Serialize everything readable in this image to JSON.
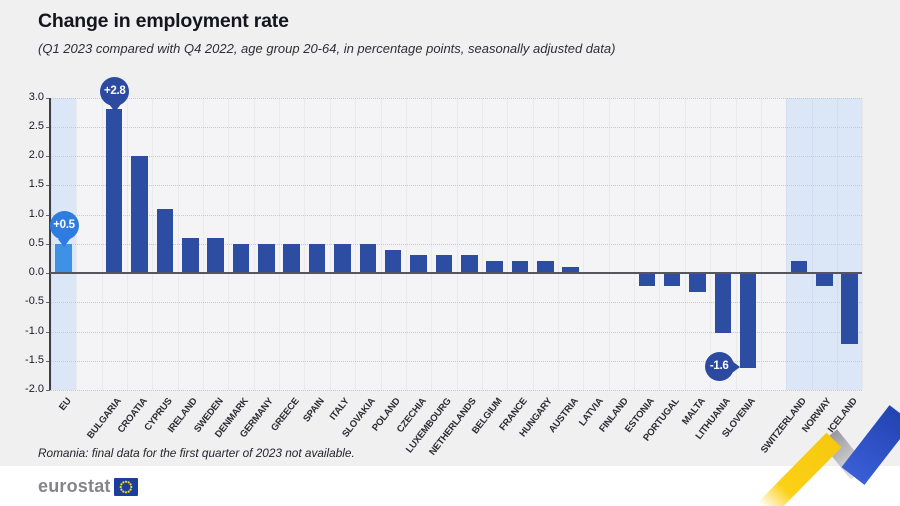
{
  "header": {
    "title": "Change in employment rate",
    "subtitle": "(Q1 2023 compared with Q4 2022, age group 20-64, in percentage points, seasonally adjusted data)"
  },
  "chart_data": {
    "type": "bar",
    "title": "Change in employment rate",
    "subtitle": "(Q1 2023 compared with Q4 2022, age group 20-64, in percentage points, seasonally adjusted data)",
    "unit": "percentage points",
    "categories": [
      "EU",
      "BULGARIA",
      "CROATIA",
      "CYPRUS",
      "IRELAND",
      "SWEDEN",
      "DENMARK",
      "GERMANY",
      "GREECE",
      "SPAIN",
      "ITALY",
      "SLOVAKIA",
      "POLAND",
      "CZECHIA",
      "LUXEMBOURG",
      "NETHERLANDS",
      "BELGIUM",
      "FRANCE",
      "HUNGARY",
      "AUSTRIA",
      "LATVIA",
      "FINLAND",
      "ESTONIA",
      "PORTUGAL",
      "MALTA",
      "LITHUANIA",
      "SLOVENIA",
      "SWITZERLAND",
      "NORWAY",
      "ICELAND"
    ],
    "values": [
      0.5,
      2.8,
      2.0,
      1.1,
      0.6,
      0.6,
      0.5,
      0.5,
      0.5,
      0.5,
      0.5,
      0.5,
      0.4,
      0.3,
      0.3,
      0.3,
      0.2,
      0.2,
      0.2,
      0.1,
      0.0,
      0.0,
      -0.2,
      -0.2,
      -0.3,
      -1.0,
      -1.6,
      0.2,
      -0.2,
      -1.2
    ],
    "ylim": [
      -2.0,
      3.0
    ],
    "ytick_step": 0.5,
    "yticks": [
      "3.0",
      "2.5",
      "2.0",
      "1.5",
      "1.0",
      "0.5",
      "0.0",
      "-0.5",
      "-1.0",
      "-1.5",
      "-2.0"
    ],
    "grid": true,
    "gaps_after": [
      "EU",
      "SLOVENIA"
    ],
    "bands": [
      {
        "from": "EU",
        "to": "EU"
      },
      {
        "from": "SWITZERLAND",
        "to": "ICELAND"
      }
    ],
    "callouts": [
      {
        "category": "EU",
        "label": "+0.5",
        "style": "light",
        "tail": "down"
      },
      {
        "category": "BULGARIA",
        "label": "+2.8",
        "style": "dark",
        "tail": "down"
      },
      {
        "category": "SLOVENIA",
        "label": "-1.6",
        "style": "dark",
        "tail": "right"
      }
    ],
    "colors": {
      "bar": "#2c4da1",
      "eu_bar": "#3e92e5",
      "band": "#dbe7f7",
      "callout_dark": "#2b4aa0",
      "callout_light": "#2e7ce0",
      "zero_line": "#55555c",
      "axis_line": "#3f3f47",
      "gridline": "#c7c7cd"
    }
  },
  "footer": {
    "note": "Romania: final data for the first quarter of 2023 not available.",
    "logo_text": "eurostat"
  },
  "decor_colors": {
    "logo_blue": "#1c3f9e",
    "logo_star": "#ffd617",
    "zigzag_yellow": "#fcd014",
    "zigzag_gray": "#b9b9bf",
    "zigzag_blue": "#2b4dc2"
  }
}
